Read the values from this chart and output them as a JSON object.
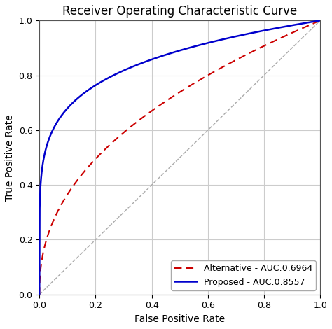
{
  "title": "Receiver Operating Characteristic Curve",
  "xlabel": "False Positive Rate",
  "ylabel": "True Positive Rate",
  "proposed_label": "Proposed - AUC:0.8557",
  "alternative_label": "Alternative - AUC:0.6964",
  "proposed_color": "#0000cc",
  "alternative_color": "#cc0000",
  "diagonal_color": "#aaaaaa",
  "background_color": "#ffffff",
  "grid_color": "#cccccc",
  "xlim": [
    0.0,
    1.0
  ],
  "ylim": [
    0.0,
    1.0
  ],
  "xticks": [
    0.0,
    0.2,
    0.4,
    0.6,
    0.8,
    1.0
  ],
  "yticks": [
    0.0,
    0.2,
    0.4,
    0.6,
    0.8,
    1.0
  ],
  "title_fontsize": 12,
  "label_fontsize": 10,
  "tick_fontsize": 9,
  "legend_fontsize": 9,
  "proposed_beta": 5.97,
  "alternative_beta": 2.29
}
